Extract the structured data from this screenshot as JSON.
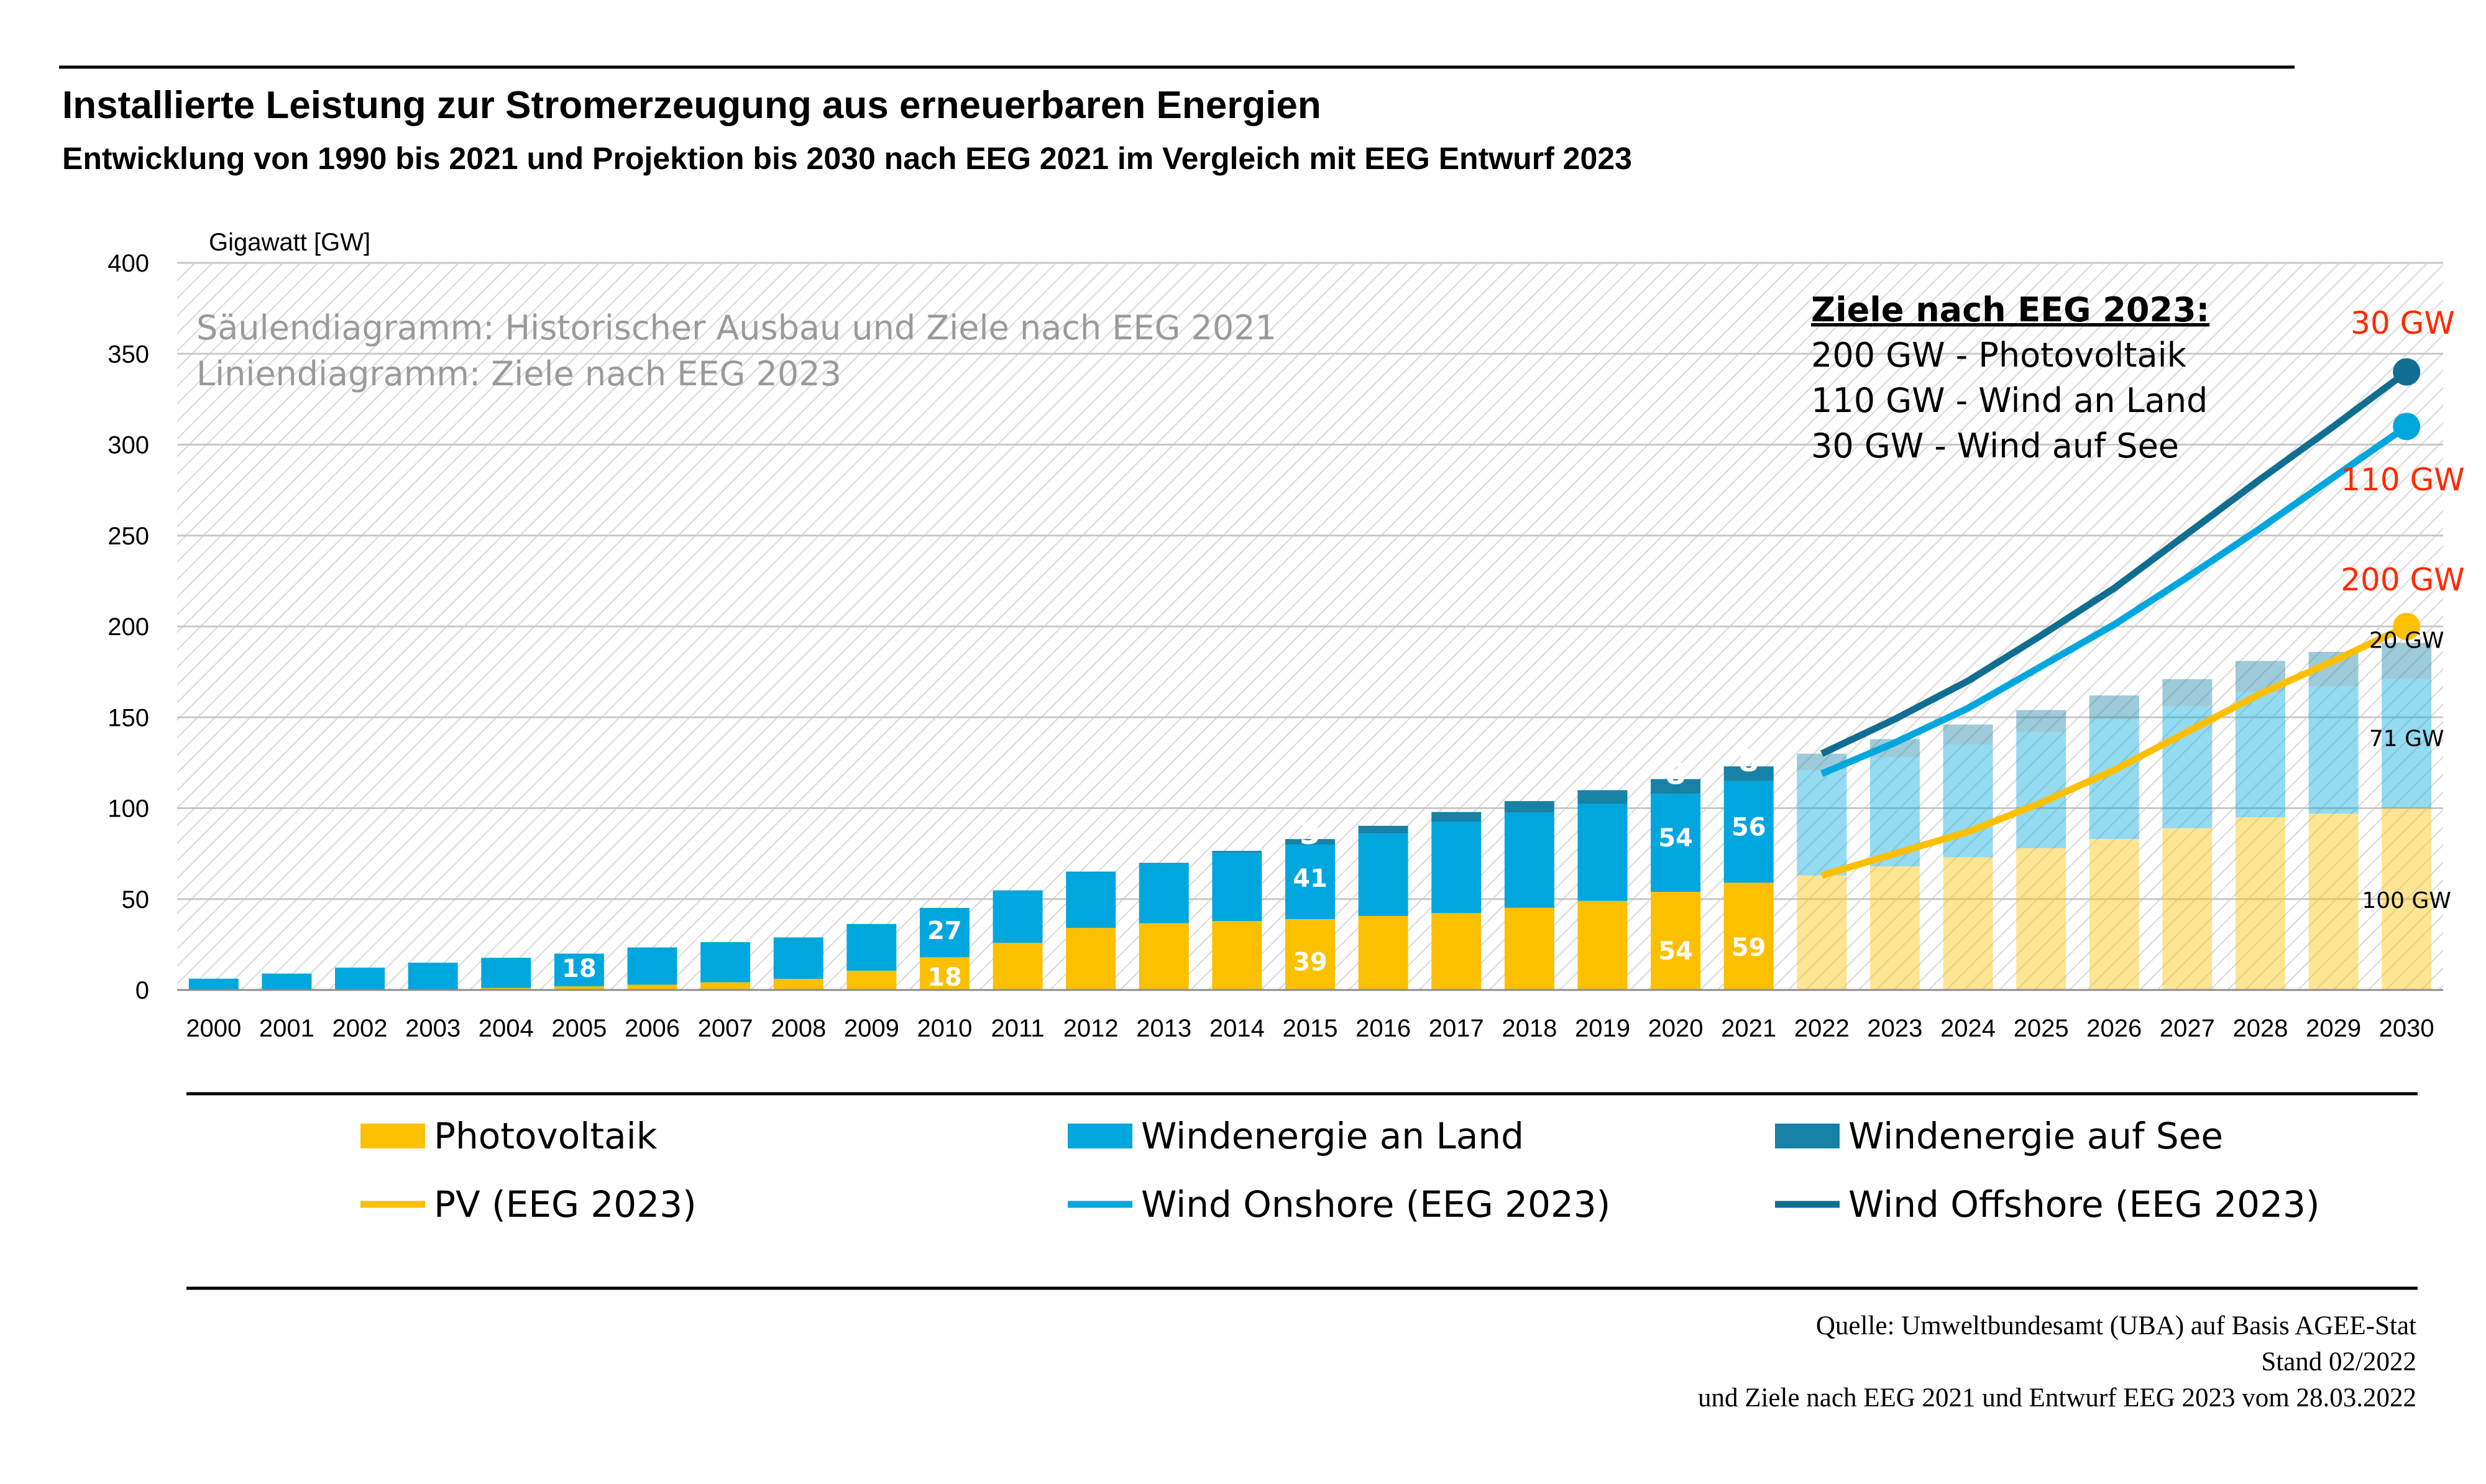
{
  "chart_data": {
    "type": "bar",
    "title": "Installierte Leistung zur Stromerzeugung aus erneuerbaren Energien",
    "subtitle": "Entwicklung von 1990 bis 2021 und Projektion bis 2030 nach EEG 2021 im Vergleich mit EEG Entwurf 2023",
    "ylabel": "Gigawatt [GW]",
    "ylim": [
      0,
      400
    ],
    "yticks": [
      "0",
      "50",
      "100",
      "150",
      "200",
      "250",
      "300",
      "350",
      "400"
    ],
    "categories": [
      "2000",
      "2001",
      "2002",
      "2003",
      "2004",
      "2005",
      "2006",
      "2007",
      "2008",
      "2009",
      "2010",
      "2011",
      "2012",
      "2013",
      "2014",
      "2015",
      "2016",
      "2017",
      "2018",
      "2019",
      "2020",
      "2021",
      "2022",
      "2023",
      "2024",
      "2025",
      "2026",
      "2027",
      "2028",
      "2029",
      "2030"
    ],
    "projection_start": "2022",
    "watermark": [
      "Säulendiagramm: Historischer Ausbau und Ziele nach EEG 2021",
      "Liniendiagramm: Ziele nach EEG 2023"
    ],
    "series": [
      {
        "name": "Photovoltaik",
        "kind": "bar",
        "color": "#FCC000",
        "values": [
          0.1,
          0.2,
          0.3,
          0.4,
          1.1,
          2,
          2.9,
          4.2,
          6.1,
          10.6,
          18,
          25.9,
          34.1,
          36.7,
          37.9,
          39,
          40.7,
          42.3,
          45.2,
          49,
          54,
          59,
          63,
          68,
          73,
          78,
          83,
          89,
          95,
          97,
          100
        ]
      },
      {
        "name": "Windenergie an Land",
        "kind": "bar",
        "color": "#00A7DE",
        "values": [
          6.1,
          8.8,
          12,
          14.6,
          16.6,
          18,
          20.5,
          22.1,
          22.8,
          25.7,
          27,
          28.7,
          30.7,
          32.6,
          37.6,
          41,
          45.4,
          50.2,
          52.3,
          53.4,
          54,
          56,
          58,
          60,
          62,
          64,
          66,
          67,
          69,
          70,
          71
        ]
      },
      {
        "name": "Windenergie auf See",
        "kind": "bar",
        "color": "#1782A6",
        "values": [
          0,
          0,
          0,
          0,
          0,
          0,
          0,
          0,
          0,
          0,
          0.1,
          0.2,
          0.3,
          0.6,
          1,
          3,
          4.2,
          5.4,
          6.4,
          7.5,
          8,
          8,
          9,
          10,
          11,
          12,
          13,
          15,
          17,
          19,
          20
        ]
      },
      {
        "name": "PV (EEG 2023)",
        "kind": "line",
        "color": "#FCC000",
        "x": [
          "2022",
          "2023",
          "2024",
          "2025",
          "2026",
          "2027",
          "2028",
          "2029",
          "2030"
        ],
        "values": [
          63,
          75,
          87,
          103,
          121,
          142,
          163,
          181,
          200
        ]
      },
      {
        "name": "Wind Onshore (EEG 2023)",
        "kind": "line",
        "color": "#00A7DE",
        "x": [
          "2022",
          "2023",
          "2024",
          "2025",
          "2026",
          "2027",
          "2028",
          "2029",
          "2030"
        ],
        "values": [
          119,
          136,
          155,
          178,
          201,
          227,
          254,
          282,
          310
        ]
      },
      {
        "name": "Wind Offshore (EEG 2023)",
        "kind": "line",
        "color": "#0F6E92",
        "x": [
          "2022",
          "2023",
          "2024",
          "2025",
          "2026",
          "2027",
          "2028",
          "2029",
          "2030"
        ],
        "values": [
          130,
          149,
          170,
          195,
          221,
          251,
          281,
          310,
          340
        ]
      }
    ],
    "bar_labels": [
      {
        "category": "2005",
        "series": "Windenergie an Land",
        "text": "18"
      },
      {
        "category": "2010",
        "series": "Photovoltaik",
        "text": "18"
      },
      {
        "category": "2010",
        "series": "Windenergie an Land",
        "text": "27"
      },
      {
        "category": "2015",
        "series": "Photovoltaik",
        "text": "39"
      },
      {
        "category": "2015",
        "series": "Windenergie an Land",
        "text": "41"
      },
      {
        "category": "2015",
        "series": "Windenergie auf See",
        "text": "3"
      },
      {
        "category": "2020",
        "series": "Photovoltaik",
        "text": "54"
      },
      {
        "category": "2020",
        "series": "Windenergie an Land",
        "text": "54"
      },
      {
        "category": "2020",
        "series": "Windenergie auf See",
        "text": "8"
      },
      {
        "category": "2021",
        "series": "Photovoltaik",
        "text": "59"
      },
      {
        "category": "2021",
        "series": "Windenergie an Land",
        "text": "56"
      },
      {
        "category": "2021",
        "series": "Windenergie auf See",
        "text": "8"
      },
      {
        "category": "2030",
        "series": "Photovoltaik",
        "text": "100 GW"
      },
      {
        "category": "2030",
        "series": "Windenergie an Land",
        "text": "71 GW"
      },
      {
        "category": "2030",
        "series": "Windenergie auf See",
        "text": "20 GW"
      }
    ],
    "line_end_labels": [
      {
        "series": "Wind Offshore (EEG 2023)",
        "text": "30 GW",
        "color": "#FF2A00"
      },
      {
        "series": "Wind Onshore (EEG 2023)",
        "text": "110 GW",
        "color": "#FF2A00"
      },
      {
        "series": "PV (EEG 2023)",
        "text": "200 GW",
        "color": "#FF2A00"
      }
    ],
    "targets_box": {
      "heading": "Ziele nach EEG 2023:",
      "lines": [
        "200 GW - Photovoltaik",
        "110 GW -  Wind an Land",
        "30 GW - Wind auf See"
      ]
    },
    "legend": [
      {
        "label": "Photovoltaik",
        "kind": "bar",
        "color": "#FCC000"
      },
      {
        "label": "Windenergie an Land",
        "kind": "bar",
        "color": "#00A7DE"
      },
      {
        "label": "Windenergie auf See",
        "kind": "bar",
        "color": "#1782A6"
      },
      {
        "label": "PV (EEG 2023)",
        "kind": "line",
        "color": "#FCC000"
      },
      {
        "label": "Wind Onshore (EEG 2023)",
        "kind": "line",
        "color": "#00A7DE"
      },
      {
        "label": "Wind Offshore (EEG 2023)",
        "kind": "line",
        "color": "#0F6E92"
      }
    ],
    "legend_position": "bottom",
    "grid": true
  },
  "source": [
    "Quelle: Umweltbundesamt (UBA) auf Basis AGEE-Stat",
    "Stand 02/2022",
    "und  Ziele nach EEG 2021 und Entwurf EEG 2023 vom 28.03.2022"
  ]
}
